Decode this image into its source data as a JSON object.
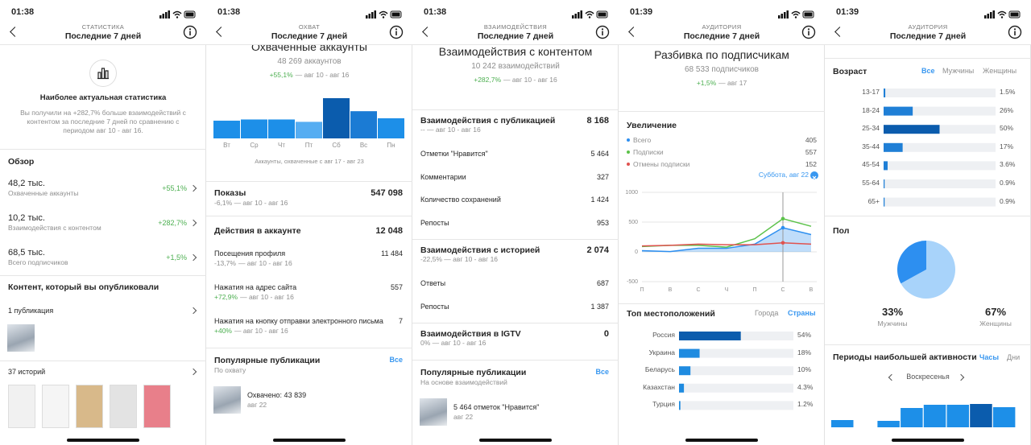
{
  "screens": [
    {
      "time": "01:38",
      "section": "СТАТИСТИКА",
      "period": "Последние 7 дней",
      "banner_title": "Наиболее актуальная статистика",
      "banner_text": "Вы получили на +282,7% больше взаимодействий с контентом за последние 7 дней по сравнению с периодом авг 10 - авг 16.",
      "overview_title": "Обзор",
      "overview": [
        {
          "value": "48,2 тыс.",
          "label": "Охваченные аккаунты",
          "change": "+55,1%"
        },
        {
          "value": "10,2 тыс.",
          "label": "Взаимодействия с контентом",
          "change": "+282,7%"
        },
        {
          "value": "68,5 тыс.",
          "label": "Всего подписчиков",
          "change": "+1,5%"
        }
      ],
      "content_title": "Контент, который вы опубликовали",
      "posts_label": "1 публикация",
      "stories_label": "37 историй"
    },
    {
      "time": "01:38",
      "section": "ОХВАТ",
      "period": "Последние 7 дней",
      "heading": "Охваченные аккаунты",
      "count": "48 269 аккаунтов",
      "change": "+55,1%",
      "change_period": "— авг 10 - авг 16",
      "chart": {
        "type": "bar",
        "categories": [
          "Вт",
          "Ср",
          "Чт",
          "Пт",
          "Сб",
          "Вс",
          "Пн"
        ],
        "values": [
          15,
          16,
          16,
          14,
          34,
          23,
          17
        ],
        "colors": [
          "#1d8fe8",
          "#1d8fe8",
          "#1d8fe8",
          "#55adf2",
          "#0b5cad",
          "#1b7bd4",
          "#1d8fe8"
        ]
      },
      "caption": "Аккаунты, охваченные с авг 17 - авг 23",
      "impressions": {
        "label": "Показы",
        "value": "547 098",
        "sub": "-6,1% — авг 10 - авг 16"
      },
      "actions": {
        "title": "Действия в аккаунте",
        "value": "12 048",
        "items": [
          {
            "label": "Посещения профиля",
            "value": "11 484",
            "change": "-13,7%",
            "period": "— авг 10 - авг 16"
          },
          {
            "label": "Нажатия на адрес сайта",
            "value": "557",
            "change": "+72,9%",
            "period": "— авг 10 - авг 16"
          },
          {
            "label": "Нажатия на кнопку отправки электронного письма",
            "value": "7",
            "change": "+40%",
            "period": "— авг 10 - авг 16"
          }
        ]
      },
      "popular": {
        "title": "Популярные публикации",
        "sub": "По охвату",
        "all": "Все",
        "post": "Охвачено: 43 839",
        "date": "авг 22"
      }
    },
    {
      "time": "01:38",
      "section": "ВЗАИМОДЕЙСТВИЯ",
      "period": "Последние 7 дней",
      "heading": "Взаимодействия с контентом",
      "count": "10 242 взаимодействий",
      "change": "+282,7%",
      "change_period": "— авг 10 - авг 16",
      "groups": [
        {
          "title": "Взаимодействия с публикацией",
          "value": "8 168",
          "sub": "-- — авг 10 - авг 16",
          "items": [
            {
              "label": "Отметки \"Нравится\"",
              "value": "5 464"
            },
            {
              "label": "Комментарии",
              "value": "327"
            },
            {
              "label": "Количество сохранений",
              "value": "1 424"
            },
            {
              "label": "Репосты",
              "value": "953"
            }
          ]
        },
        {
          "title": "Взаимодействия с историей",
          "value": "2 074",
          "sub": "-22,5% — авг 10 - авг 16",
          "items": [
            {
              "label": "Ответы",
              "value": "687"
            },
            {
              "label": "Репосты",
              "value": "1 387"
            }
          ]
        },
        {
          "title": "Взаимодействия в IGTV",
          "value": "0",
          "sub": "0% — авг 10 - авг 16",
          "items": []
        }
      ],
      "popular": {
        "title": "Популярные публикации",
        "sub": "На основе взаимодействий",
        "all": "Все",
        "post": "5 464 отметок \"Нравится\"",
        "date": "авг 22"
      }
    },
    {
      "time": "01:39",
      "section": "АУДИТОРИЯ",
      "period": "Последние 7 дней",
      "heading": "Разбивка по подписчикам",
      "count": "68 533 подписчиков",
      "change": "+1,5%",
      "change_period": "— авг 17",
      "growth": {
        "title": "Увеличение",
        "selected": "Суббота, авг 22",
        "chart": {
          "type": "line",
          "categories": [
            "П",
            "В",
            "С",
            "Ч",
            "П",
            "С",
            "В"
          ],
          "ylim": [
            -500,
            1000
          ],
          "yticks": [
            -500,
            0,
            500,
            1000
          ],
          "selected_index": 5,
          "series": [
            {
              "name": "Всего",
              "color": "#2d8ff0",
              "total": 405,
              "values": [
                20,
                5,
                60,
                60,
                130,
                405,
                290
              ]
            },
            {
              "name": "Подписки",
              "color": "#5cc24a",
              "total": 557,
              "values": [
                90,
                110,
                110,
                80,
                220,
                557,
                430
              ]
            },
            {
              "name": "Отмены подписки",
              "color": "#e0524f",
              "total": 152,
              "values": [
                100,
                110,
                130,
                120,
                120,
                152,
                130
              ]
            }
          ]
        }
      },
      "locations": {
        "title": "Топ местоположений",
        "tabs": [
          "Города",
          "Страны"
        ],
        "chart": {
          "type": "bar",
          "categories": [
            "Россия",
            "Украина",
            "Беларусь",
            "Казахстан",
            "Турция"
          ],
          "values": [
            54,
            18,
            10,
            4.3,
            1.2
          ],
          "value_labels": [
            "54%",
            "18%",
            "10%",
            "4.3%",
            "1.2%"
          ],
          "colors": [
            "#0b5cad",
            "#1f8be0",
            "#1f8be0",
            "#1f8be0",
            "#1f8be0"
          ],
          "xlim": [
            0,
            100
          ]
        }
      }
    },
    {
      "time": "01:39",
      "section": "АУДИТОРИЯ",
      "period": "Последние 7 дней",
      "age": {
        "title": "Возраст",
        "tabs": [
          "Все",
          "Мужчины",
          "Женщины"
        ],
        "chart": {
          "type": "bar",
          "categories": [
            "13-17",
            "18-24",
            "25-34",
            "35-44",
            "45-54",
            "55-64",
            "65+"
          ],
          "values": [
            1.5,
            26,
            50,
            17,
            3.6,
            0.9,
            0.9
          ],
          "value_labels": [
            "1.5%",
            "26%",
            "50%",
            "17%",
            "3.6%",
            "0.9%",
            "0.9%"
          ],
          "colors": [
            "#1f7fd6",
            "#1f7fd6",
            "#0b5cad",
            "#1f7fd6",
            "#1f7fd6",
            "#1f7fd6",
            "#1f7fd6"
          ],
          "xlim": [
            0,
            100
          ]
        }
      },
      "gender": {
        "title": "Пол",
        "chart": {
          "type": "pie",
          "categories": [
            "Мужчины",
            "Женщины"
          ],
          "values": [
            33,
            67
          ],
          "value_labels": [
            "33%",
            "67%"
          ],
          "colors": [
            "#2d8ff0",
            "#a8d3fa"
          ]
        }
      },
      "activity": {
        "title": "Периоды наибольшей активности",
        "tabs": [
          "Часы",
          "Дни"
        ],
        "day": "Воскресенья",
        "chart": {
          "type": "bar",
          "values": [
            9,
            0,
            8,
            24,
            28,
            28,
            29,
            25
          ],
          "colors": [
            "#1d8fe8",
            "#1d8fe8",
            "#1d8fe8",
            "#1d8fe8",
            "#1d8fe8",
            "#1d8fe8",
            "#0b5cad",
            "#1d8fe8"
          ]
        }
      }
    }
  ]
}
